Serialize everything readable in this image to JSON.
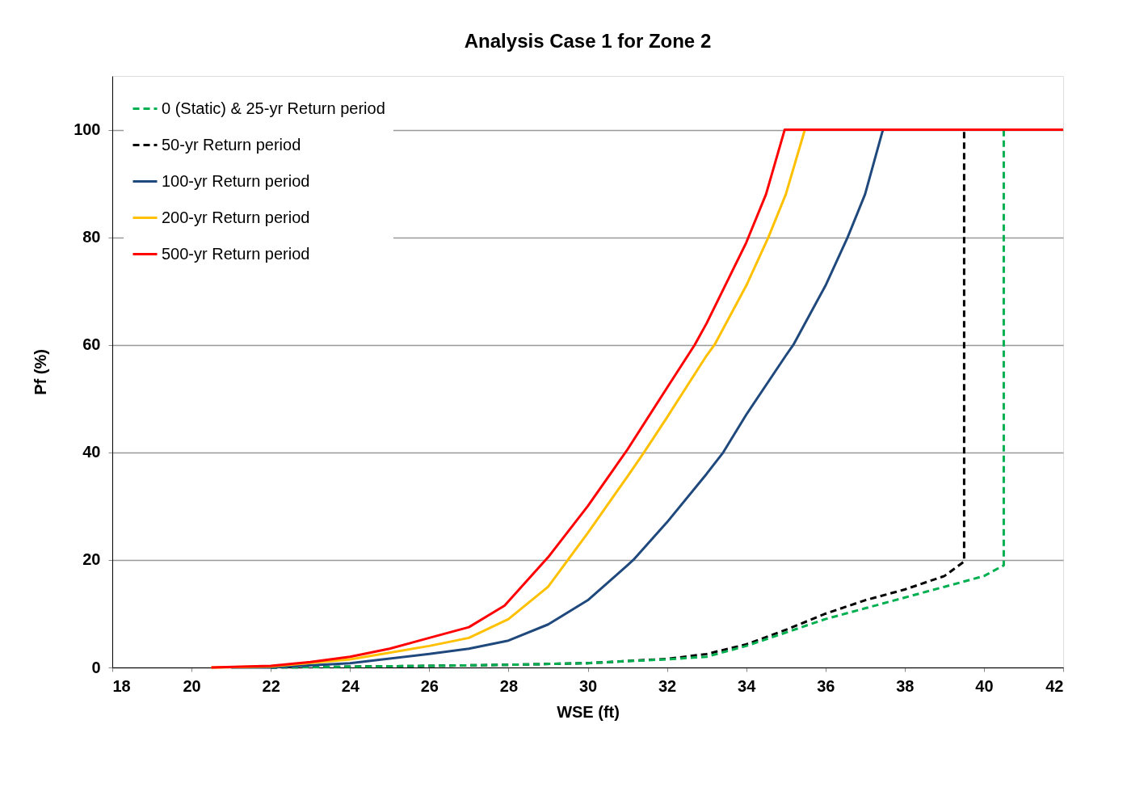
{
  "chart_data": {
    "type": "line",
    "title": "Analysis Case 1 for Zone 2",
    "xlabel": "WSE (ft)",
    "ylabel": "Pf (%)",
    "xlim": [
      18,
      42
    ],
    "xticks": [
      18,
      20,
      22,
      24,
      26,
      28,
      30,
      32,
      34,
      36,
      38,
      40,
      42
    ],
    "ylim": [
      0,
      110
    ],
    "yticks": [
      0,
      20,
      40,
      60,
      80,
      100
    ],
    "grid": "y",
    "legend": "top left",
    "marker": "none",
    "series": [
      {
        "name": "0 (Static) & 25-yr Return period",
        "color": "#00b050",
        "line_style": "dashed",
        "x": [
          22,
          26,
          28,
          30,
          31,
          32,
          33,
          34,
          35,
          36,
          37,
          38,
          39,
          40,
          40.5,
          40.5
        ],
        "values": [
          0,
          0.3,
          0.5,
          0.8,
          1.2,
          1.5,
          2,
          4,
          6.5,
          9,
          11,
          13,
          15,
          17,
          19,
          100
        ]
      },
      {
        "name": "50-yr Return period",
        "color": "#000000",
        "line_style": "dashed",
        "x": [
          22,
          26,
          28,
          30,
          31,
          32,
          33,
          34,
          35,
          36,
          37,
          38,
          39,
          39.5,
          39.5
        ],
        "values": [
          0,
          0.3,
          0.5,
          0.8,
          1.2,
          1.6,
          2.5,
          4.3,
          7,
          10,
          12.5,
          14.5,
          17,
          19.7,
          100
        ]
      },
      {
        "name": "100-yr Return period",
        "color": "#1f497d",
        "line_style": "solid",
        "x": [
          21,
          22,
          24,
          26,
          27,
          28,
          29,
          30,
          31,
          31.15,
          32,
          33,
          33.42,
          34,
          35,
          35.19,
          36,
          36.56,
          37,
          37.45
        ],
        "values": [
          0,
          0,
          0.8,
          2.5,
          3.5,
          5,
          8,
          12.5,
          19,
          20,
          27,
          36,
          40,
          47,
          58,
          60,
          71,
          80,
          88,
          100
        ]
      },
      {
        "name": "200-yr Return period",
        "color": "#ffc000",
        "line_style": "solid",
        "x": [
          20.5,
          22,
          24,
          26,
          27,
          28,
          29,
          29.5,
          30,
          31,
          31.42,
          32,
          33,
          33.2,
          34,
          34.56,
          35,
          35.48
        ],
        "values": [
          0,
          0.2,
          1.5,
          4,
          5.5,
          9,
          15,
          20,
          25,
          35.5,
          40,
          46.5,
          58,
          60,
          71,
          80,
          88,
          100
        ]
      },
      {
        "name": "500-yr Return period",
        "color": "#ff0000",
        "line_style": "solid",
        "x": [
          20.5,
          22,
          23,
          24,
          25,
          26,
          27,
          27.9,
          29,
          30,
          31,
          32,
          32.7,
          33,
          34,
          34.5,
          34.97,
          42
        ],
        "values": [
          0,
          0.3,
          1,
          2,
          3.5,
          5.5,
          7.5,
          11.5,
          20.5,
          30,
          40.5,
          52,
          60,
          64,
          79,
          88,
          100,
          100
        ]
      }
    ]
  }
}
